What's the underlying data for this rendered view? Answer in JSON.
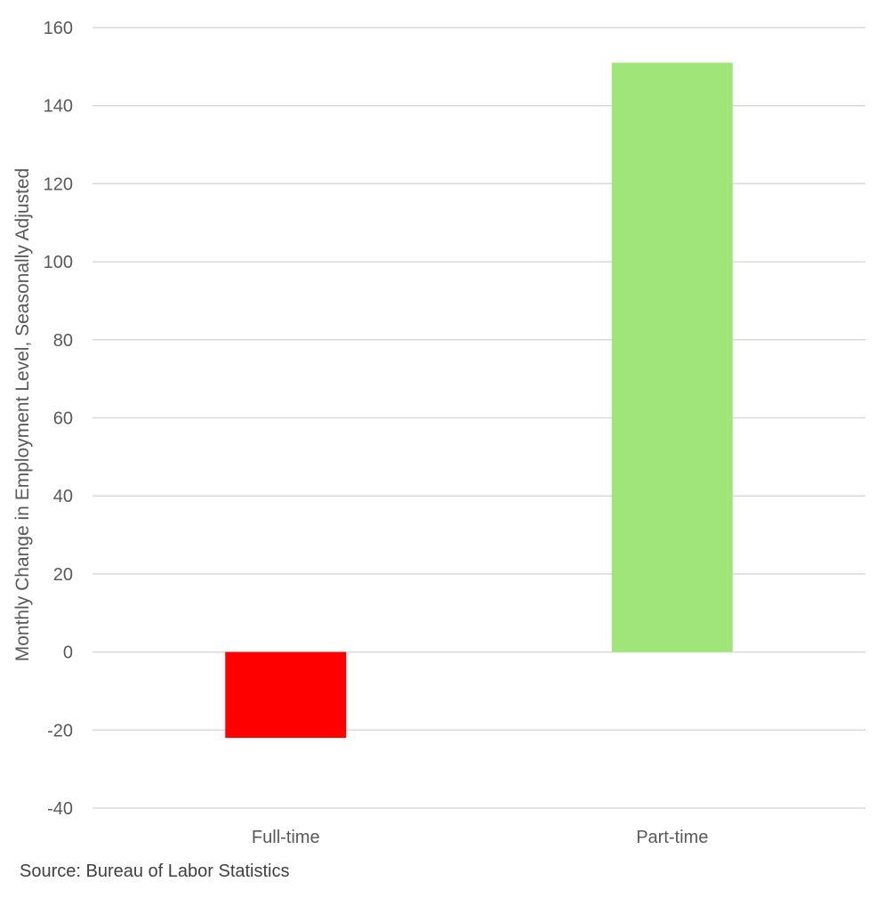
{
  "chart_data": {
    "type": "bar",
    "title": "",
    "categories": [
      "Full-time",
      "Part-time"
    ],
    "values": [
      -22,
      151
    ],
    "bar_colors": [
      "#FF0000",
      "#A0E57A"
    ],
    "xlabel": "",
    "ylabel": "Monthly Change in Employment Level, Seasonally Adjusted",
    "ylim": [
      -40,
      160
    ],
    "yticks": [
      160,
      140,
      120,
      100,
      80,
      60,
      40,
      20,
      0,
      -20,
      -40
    ],
    "ytick_labels": [
      "160",
      "140",
      "120",
      "100",
      "80",
      "60",
      "40",
      "20",
      "0",
      "-20",
      "-40"
    ],
    "grid": true,
    "legend": "none"
  },
  "source": "Source: Bureau of Labor Statistics",
  "colors": {
    "grid": "#D9D9D9",
    "axis_text": "#595959",
    "source_text": "#404040"
  }
}
